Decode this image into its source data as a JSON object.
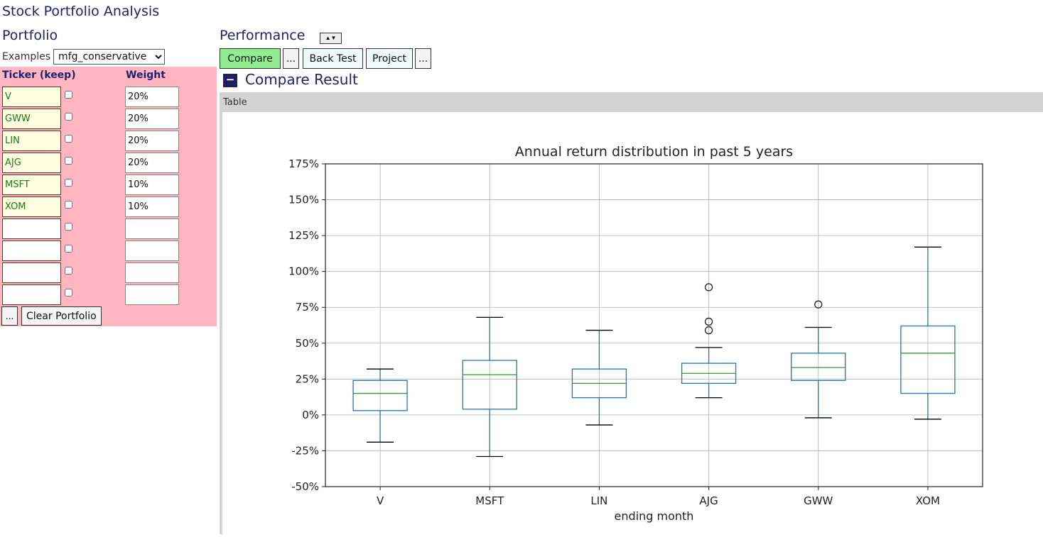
{
  "app": {
    "title": "Stock Portfolio Analysis"
  },
  "portfolio": {
    "title": "Portfolio",
    "examples_label": "Examples",
    "examples_selected": "mfg_conservative",
    "col_ticker": "Ticker (keep)",
    "col_weight": "Weight",
    "rows": [
      {
        "ticker": "V",
        "weight": "20%"
      },
      {
        "ticker": "GWW",
        "weight": "20%"
      },
      {
        "ticker": "LIN",
        "weight": "20%"
      },
      {
        "ticker": "AJG",
        "weight": "20%"
      },
      {
        "ticker": "MSFT",
        "weight": "10%"
      },
      {
        "ticker": "XOM",
        "weight": "10%"
      },
      {
        "ticker": "",
        "weight": ""
      },
      {
        "ticker": "",
        "weight": ""
      },
      {
        "ticker": "",
        "weight": ""
      },
      {
        "ticker": "",
        "weight": ""
      }
    ],
    "more_label": "...",
    "clear_label": "Clear Portfolio"
  },
  "performance": {
    "title": "Performance",
    "sort_label": "▲▼",
    "compare_label": "Compare",
    "more_label": "...",
    "backtest_label": "Back Test",
    "project_label": "Project",
    "more2_label": "..."
  },
  "result": {
    "toggle": "−",
    "title": "Compare Result",
    "table_label": "Table"
  },
  "chart_data": {
    "type": "box",
    "title": "Annual return distribution in past 5 years",
    "xlabel": "ending month",
    "ylabel": "",
    "ylim": [
      -0.5,
      1.75
    ],
    "yticks": [
      -0.5,
      -0.25,
      0,
      0.25,
      0.5,
      0.75,
      1.0,
      1.25,
      1.5,
      1.75
    ],
    "ytick_labels": [
      "-50%",
      "-25%",
      "0%",
      "25%",
      "50%",
      "75%",
      "100%",
      "125%",
      "150%",
      "175%"
    ],
    "grid": true,
    "categories": [
      "V",
      "MSFT",
      "LIN",
      "AJG",
      "GWW",
      "XOM"
    ],
    "boxes": [
      {
        "name": "V",
        "whislo": -0.19,
        "q1": 0.03,
        "med": 0.15,
        "q3": 0.24,
        "whishi": 0.32,
        "fliers": []
      },
      {
        "name": "MSFT",
        "whislo": -0.29,
        "q1": 0.04,
        "med": 0.28,
        "q3": 0.38,
        "whishi": 0.68,
        "fliers": []
      },
      {
        "name": "LIN",
        "whislo": -0.07,
        "q1": 0.12,
        "med": 0.22,
        "q3": 0.32,
        "whishi": 0.59,
        "fliers": []
      },
      {
        "name": "AJG",
        "whislo": 0.12,
        "q1": 0.22,
        "med": 0.29,
        "q3": 0.36,
        "whishi": 0.47,
        "fliers": [
          0.89,
          0.65,
          0.59
        ]
      },
      {
        "name": "GWW",
        "whislo": -0.02,
        "q1": 0.24,
        "med": 0.33,
        "q3": 0.43,
        "whishi": 0.61,
        "fliers": [
          0.77
        ]
      },
      {
        "name": "XOM",
        "whislo": -0.03,
        "q1": 0.15,
        "med": 0.43,
        "q3": 0.62,
        "whishi": 1.17,
        "fliers": []
      }
    ],
    "colors": {
      "box": "#1f77b4",
      "median": "#2ca02c",
      "whisker_cap": "#000000",
      "grid": "#b0b0b0"
    }
  }
}
